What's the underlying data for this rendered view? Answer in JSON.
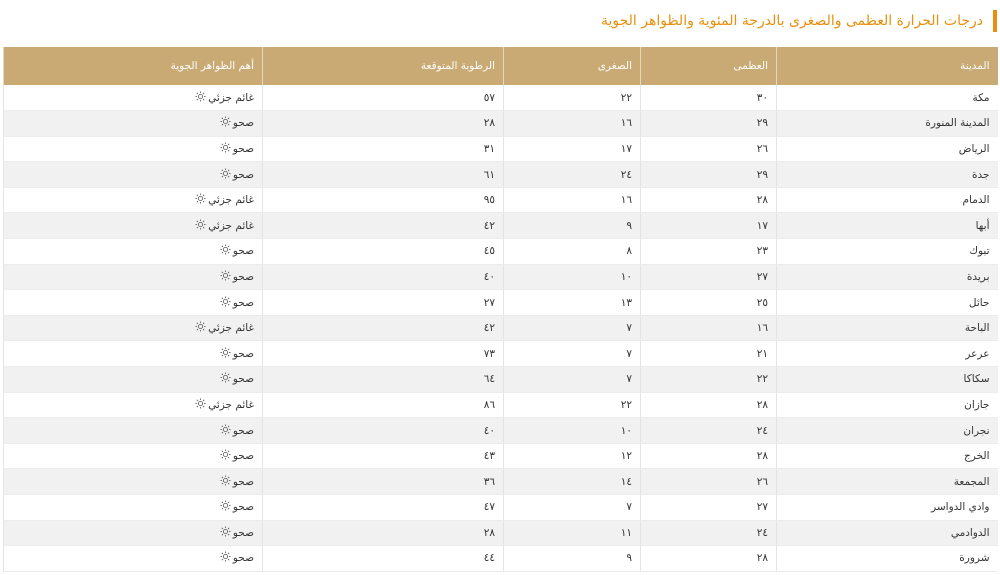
{
  "header": {
    "title": "درجات الحرارة العظمى والصغرى بالدرجة المئوية والظواهر الجوية"
  },
  "table": {
    "columns": [
      "المدينة",
      "العظمى",
      "الصغرى",
      "الرطوبة المتوقعة",
      "أهم الظواهر الجوية"
    ],
    "rows": [
      [
        "مكة",
        "٣٠",
        "٢٢",
        "٥٧",
        "غائم جزئي"
      ],
      [
        "المدينة المنورة",
        "٢٩",
        "١٦",
        "٢٨",
        "صحو"
      ],
      [
        "الرياض",
        "٢٦",
        "١٧",
        "٣١",
        "صحو"
      ],
      [
        "جدة",
        "٢٩",
        "٢٤",
        "٦١",
        "صحو"
      ],
      [
        "الدمام",
        "٢٨",
        "١٦",
        "٩٥",
        "غائم جزئي"
      ],
      [
        "أبها",
        "١٧",
        "٩",
        "٤٢",
        "غائم جزئي"
      ],
      [
        "تبوك",
        "٢٣",
        "٨",
        "٤٥",
        "صحو"
      ],
      [
        "بريدة",
        "٢٧",
        "١٠",
        "٤٠",
        "صحو"
      ],
      [
        "حائل",
        "٢٥",
        "١٣",
        "٢٧",
        "صحو"
      ],
      [
        "الباحة",
        "١٦",
        "٧",
        "٤٢",
        "غائم جزئي"
      ],
      [
        "عرعر",
        "٢١",
        "٧",
        "٧٣",
        "صحو"
      ],
      [
        "سكاكا",
        "٢٢",
        "٧",
        "٦٤",
        "صحو"
      ],
      [
        "جازان",
        "٢٨",
        "٢٢",
        "٨٦",
        "غائم جزئي"
      ],
      [
        "نجران",
        "٢٤",
        "١٠",
        "٤٠",
        "صحو"
      ],
      [
        "الخرج",
        "٢٨",
        "١٢",
        "٤٣",
        "صحو"
      ],
      [
        "المجمعة",
        "٢٦",
        "١٤",
        "٣٦",
        "صحو"
      ],
      [
        "وادي الدواسر",
        "٢٧",
        "٧",
        "٤٧",
        "صحو"
      ],
      [
        "الدوادمي",
        "٢٤",
        "١١",
        "٢٨",
        "صحو"
      ],
      [
        "شرورة",
        "٢٨",
        "٩",
        "٤٤",
        "صحو"
      ]
    ]
  }
}
